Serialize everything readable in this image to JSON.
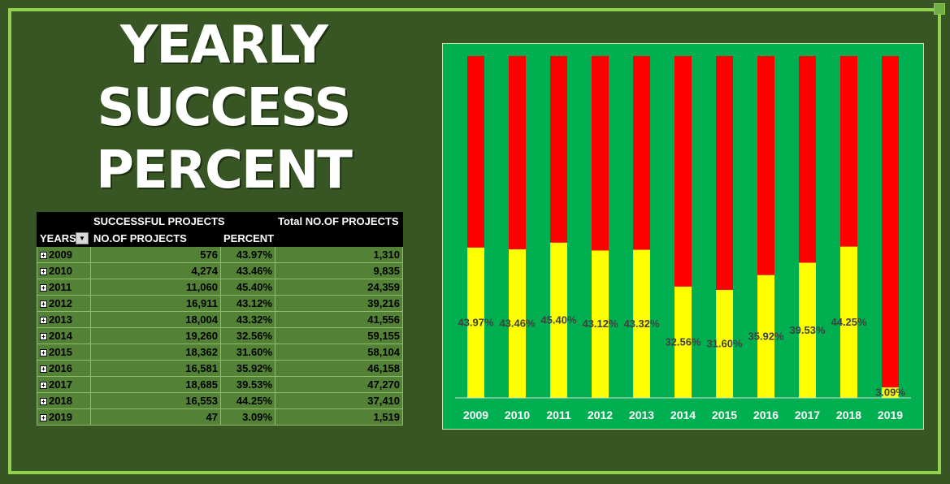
{
  "title": {
    "line1": "YEARLY",
    "line2": "SUCCESS",
    "line3": "PERCENT"
  },
  "table": {
    "group_header": "SUCCESSFUL PROJECTS",
    "total_header": "Total NO.OF PROJECTS",
    "years_header": "YEARS",
    "count_header": "NO.OF PROJECTS",
    "percent_header": "PERCENT",
    "rows": [
      {
        "year": "2009",
        "count": "576",
        "percent": "43.97%",
        "total": "1,310"
      },
      {
        "year": "2010",
        "count": "4,274",
        "percent": "43.46%",
        "total": "9,835"
      },
      {
        "year": "2011",
        "count": "11,060",
        "percent": "45.40%",
        "total": "24,359"
      },
      {
        "year": "2012",
        "count": "16,911",
        "percent": "43.12%",
        "total": "39,216"
      },
      {
        "year": "2013",
        "count": "18,004",
        "percent": "43.32%",
        "total": "41,556"
      },
      {
        "year": "2014",
        "count": "19,260",
        "percent": "32.56%",
        "total": "59,155"
      },
      {
        "year": "2015",
        "count": "18,362",
        "percent": "31.60%",
        "total": "58,104"
      },
      {
        "year": "2016",
        "count": "16,581",
        "percent": "35.92%",
        "total": "46,158"
      },
      {
        "year": "2017",
        "count": "18,685",
        "percent": "39.53%",
        "total": "47,270"
      },
      {
        "year": "2018",
        "count": "16,553",
        "percent": "44.25%",
        "total": "37,410"
      },
      {
        "year": "2019",
        "count": "47",
        "percent": "3.09%",
        "total": "1,519"
      }
    ]
  },
  "colors": {
    "background": "#375623",
    "border": "#92d050",
    "chart_background": "#00b050",
    "success_bar": "#ffff00",
    "remainder_bar": "#ff0000",
    "table_row": "#538135"
  },
  "chart_data": {
    "type": "bar",
    "stacked": "100%",
    "categories": [
      "2009",
      "2010",
      "2011",
      "2012",
      "2013",
      "2014",
      "2015",
      "2016",
      "2017",
      "2018",
      "2019"
    ],
    "series": [
      {
        "values": [
          43.97,
          43.46,
          45.4,
          43.12,
          43.32,
          32.56,
          31.6,
          35.92,
          39.53,
          44.25,
          3.09
        ],
        "color": "#ffff00"
      },
      {
        "values": [
          56.03,
          56.54,
          54.6,
          56.88,
          56.68,
          67.44,
          68.4,
          64.08,
          60.47,
          55.75,
          96.91
        ],
        "color": "#ff0000"
      }
    ],
    "data_labels": [
      "43.97%",
      "43.46%",
      "45.40%",
      "43.12%",
      "43.32%",
      "32.56%",
      "31.60%",
      "35.92%",
      "39.53%",
      "44.25%",
      "3.09%"
    ],
    "ylim": [
      0,
      100
    ],
    "grid": false,
    "legend": "none"
  }
}
